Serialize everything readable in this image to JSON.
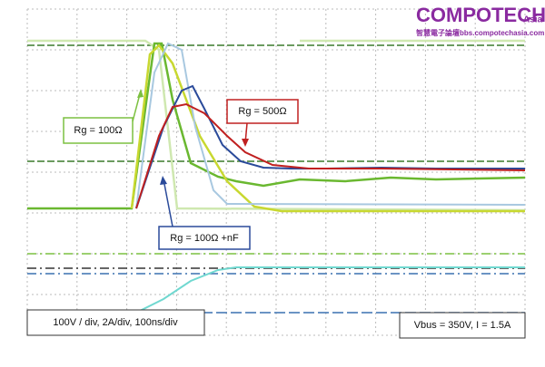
{
  "header": {
    "brand": "COMPOTECH",
    "brand_suffix": "Asia",
    "site": "智慧電子論壇bbs.compotechasia.com"
  },
  "annotations": {
    "rg_100": "Rg = 100Ω",
    "rg_500": "Rg = 500Ω",
    "rg_100_nf": "Rg = 100Ω +nF"
  },
  "footer": {
    "scale": "100V / div, 2A/div, 100ns/div",
    "conditions": "Vbus = 350V, I = 1.5A"
  }
}
